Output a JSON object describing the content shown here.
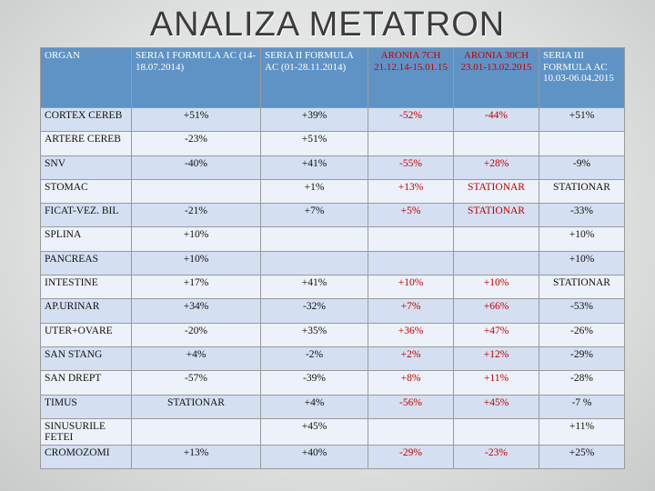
{
  "title": "ANALIZA METATRON",
  "headers": [
    "ORGAN",
    "SERIA I FORMULA AC (14-18.07.2014)",
    "SERIA II FORMULA AC (01-28.11.2014)",
    "ARONIA 7CH 21.12.14-15.01.15",
    "ARONIA 30CH 23.01-13.02.2015",
    "SERIA III FORMULA AC 10.03-06.04.2015"
  ],
  "rows": [
    [
      "CORTEX CEREB",
      "+51%",
      "+39%",
      "-52%",
      "-44%",
      "+51%"
    ],
    [
      "ARTERE CEREB",
      "-23%",
      "+51%",
      "",
      "",
      ""
    ],
    [
      "SNV",
      "-40%",
      "+41%",
      "-55%",
      "+28%",
      "-9%"
    ],
    [
      "STOMAC",
      "",
      "+1%",
      "+13%",
      "STATIONAR",
      "STATIONAR"
    ],
    [
      "FICAT-VEZ. BIL",
      "-21%",
      "+7%",
      "+5%",
      "STATIONAR",
      "-33%"
    ],
    [
      "SPLINA",
      "+10%",
      "",
      "",
      "",
      "+10%"
    ],
    [
      "PANCREAS",
      "+10%",
      "",
      "",
      "",
      "+10%"
    ],
    [
      "INTESTINE",
      "+17%",
      "+41%",
      "+10%",
      "+10%",
      "STATIONAR"
    ],
    [
      "AP.URINAR",
      "+34%",
      "-32%",
      "+7%",
      "+66%",
      "-53%"
    ],
    [
      "UTER+OVARE",
      "-20%",
      "+35%",
      "+36%",
      "+47%",
      "-26%"
    ],
    [
      "SAN STANG",
      "+4%",
      "-2%",
      "+2%",
      "+12%",
      "-29%"
    ],
    [
      "SAN DREPT",
      "-57%",
      "-39%",
      "+8%",
      "+11%",
      "-28%"
    ],
    [
      "TIMUS",
      "STATIONAR",
      "+4%",
      "-56%",
      "+45%",
      "-7 %"
    ],
    [
      "SINUSURILE FETEI",
      "",
      "+45%",
      "",
      "",
      "+11%"
    ],
    [
      "CROMOZOMI",
      "+13%",
      "+40%",
      "-29%",
      "-23%",
      "+25%"
    ]
  ],
  "colors": {
    "header_bg": "#5f93c6",
    "row_odd": "#d4dff2",
    "row_even": "#edf1f9",
    "aronia_text": "#c00000"
  }
}
